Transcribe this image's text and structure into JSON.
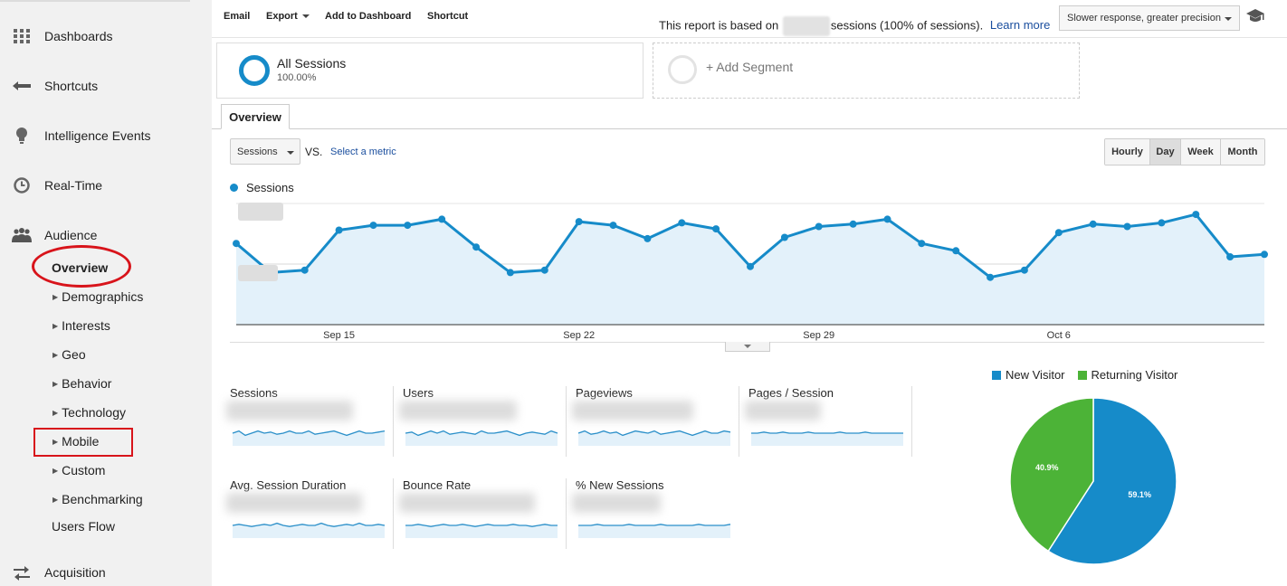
{
  "sidebar": {
    "items": [
      {
        "label": "Dashboards",
        "icon": "grid-icon"
      },
      {
        "label": "Shortcuts",
        "icon": "arrow-left-icon"
      },
      {
        "label": "Intelligence Events",
        "icon": "lightbulb-icon"
      },
      {
        "label": "Real-Time",
        "icon": "clock-icon"
      },
      {
        "label": "Audience",
        "icon": "people-icon"
      }
    ],
    "audience_sub": {
      "overview": "Overview",
      "expandable": [
        "Demographics",
        "Interests",
        "Geo",
        "Behavior",
        "Technology",
        "Mobile",
        "Custom",
        "Benchmarking"
      ],
      "users_flow": "Users Flow"
    },
    "acquisition": {
      "label": "Acquisition",
      "icon": "arrows-exchange-icon"
    },
    "highlight_color": "#d8141b"
  },
  "toolbar": {
    "email": "Email",
    "export": "Export",
    "add_to_dashboard": "Add to Dashboard",
    "shortcut": "Shortcut",
    "report_prefix": "This report is based on",
    "report_suffix": "sessions (100% of sessions).",
    "learn_more": "Learn more",
    "precision_select": "Slower response, greater precision"
  },
  "segments": {
    "all": {
      "name": "All Sessions",
      "percent": "100.00%"
    },
    "add_label": "+ Add Segment"
  },
  "tabs": {
    "overview": "Overview"
  },
  "chart_controls": {
    "metric": "Sessions",
    "vs": "VS.",
    "select_metric": "Select a metric",
    "granularity": [
      "Hourly",
      "Day",
      "Week",
      "Month"
    ],
    "active_granularity": "Day"
  },
  "chart_data": [
    {
      "type": "area",
      "series": [
        {
          "name": "Sessions",
          "color": "#168bc9",
          "values": [
            0.67,
            0.43,
            0.45,
            0.78,
            0.82,
            0.82,
            0.87,
            0.64,
            0.43,
            0.45,
            0.85,
            0.82,
            0.71,
            0.84,
            0.79,
            0.48,
            0.72,
            0.81,
            0.83,
            0.87,
            0.67,
            0.61,
            0.39,
            0.45,
            0.76,
            0.83,
            0.81,
            0.84,
            0.91,
            0.56,
            0.58
          ]
        }
      ],
      "x_tick_labels": [
        "Sep 15",
        "Sep 22",
        "Sep 29",
        "Oct 6"
      ],
      "y_axis_labels_redacted": true
    },
    {
      "type": "pie",
      "categories": [
        "New Visitor",
        "Returning Visitor"
      ],
      "values": [
        59.1,
        40.9
      ],
      "labels": [
        "59.1%",
        "40.9%"
      ],
      "colors": [
        "#168bc9",
        "#4cb337"
      ]
    }
  ],
  "metrics": {
    "tiles": [
      {
        "name": "Sessions"
      },
      {
        "name": "Users"
      },
      {
        "name": "Pageviews"
      },
      {
        "name": "Pages / Session"
      },
      {
        "name": "Avg. Session Duration"
      },
      {
        "name": "Bounce Rate"
      },
      {
        "name": "% New Sessions"
      }
    ],
    "values_redacted": true
  }
}
